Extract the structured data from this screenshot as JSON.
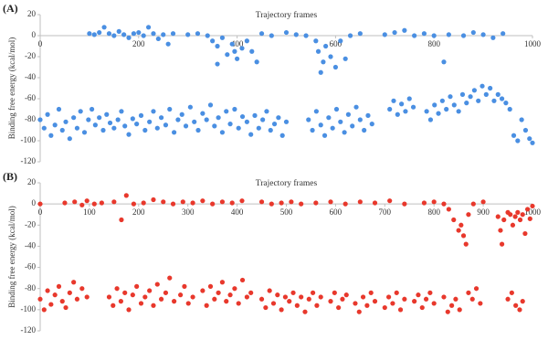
{
  "chart_data": [
    {
      "type": "scatter",
      "panel_label": "(A)",
      "title": "Trajectory frames",
      "ylabel": "Binding free energy (kcal/mol)",
      "color": "#4a8fe2",
      "xlim": [
        0,
        1000
      ],
      "ylim": [
        -120,
        20
      ],
      "xticks": [
        0,
        200,
        400,
        600,
        800,
        1000
      ],
      "yticks": [
        20,
        0,
        -20,
        -40,
        -60,
        -80,
        -100,
        -120
      ],
      "x": [
        100,
        110,
        120,
        130,
        140,
        150,
        160,
        170,
        180,
        190,
        200,
        210,
        220,
        230,
        240,
        250,
        260,
        270,
        300,
        320,
        340,
        350,
        360,
        370,
        380,
        390,
        400,
        410,
        420,
        430,
        440,
        360,
        395,
        450,
        470,
        500,
        520,
        540,
        560,
        565,
        570,
        575,
        580,
        590,
        600,
        610,
        620,
        630,
        650,
        700,
        720,
        740,
        760,
        780,
        800,
        820,
        830,
        860,
        880,
        900,
        920,
        940,
        0,
        8,
        15,
        22,
        30,
        38,
        45,
        52,
        60,
        68,
        75,
        82,
        90,
        98,
        105,
        112,
        120,
        128,
        135,
        142,
        150,
        158,
        165,
        172,
        180,
        188,
        196,
        205,
        213,
        222,
        230,
        238,
        246,
        255,
        263,
        272,
        280,
        288,
        296,
        305,
        313,
        321,
        330,
        338,
        346,
        354,
        362,
        370,
        378,
        386,
        395,
        403,
        411,
        420,
        428,
        436,
        444,
        452,
        460,
        468,
        476,
        484,
        492,
        500,
        545,
        553,
        561,
        570,
        578,
        586,
        594,
        602,
        610,
        618,
        626,
        634,
        642,
        650,
        658,
        666,
        674,
        710,
        718,
        726,
        734,
        742,
        750,
        758,
        785,
        793,
        801,
        809,
        817,
        825,
        833,
        841,
        850,
        858,
        866,
        874,
        882,
        890,
        898,
        906,
        914,
        922,
        930,
        938,
        946,
        954,
        962,
        970,
        978,
        986,
        994,
        1000
      ],
      "values": [
        2,
        1,
        3,
        8,
        2,
        0,
        4,
        1,
        -2,
        2,
        3,
        0,
        8,
        2,
        -3,
        1,
        -8,
        2,
        1,
        2,
        0,
        -5,
        -10,
        -2,
        -18,
        -8,
        -22,
        -12,
        -5,
        -15,
        -25,
        -27,
        -15,
        2,
        0,
        3,
        1,
        0,
        -5,
        -15,
        -35,
        -25,
        -10,
        -20,
        -30,
        -5,
        -22,
        0,
        2,
        1,
        3,
        5,
        0,
        2,
        0,
        -25,
        1,
        0,
        3,
        1,
        -2,
        2,
        -80,
        -88,
        -75,
        -95,
        -85,
        -70,
        -90,
        -82,
        -98,
        -78,
        -88,
        -72,
        -92,
        -80,
        -70,
        -85,
        -78,
        -90,
        -75,
        -83,
        -88,
        -80,
        -72,
        -86,
        -94,
        -79,
        -84,
        -76,
        -90,
        -82,
        -72,
        -88,
        -78,
        -85,
        -70,
        -92,
        -80,
        -75,
        -86,
        -68,
        -82,
        -90,
        -74,
        -80,
        -66,
        -86,
        -78,
        -92,
        -72,
        -84,
        -70,
        -88,
        -77,
        -82,
        -94,
        -76,
        -88,
        -80,
        -72,
        -90,
        -84,
        -78,
        -95,
        -82,
        -80,
        -90,
        -72,
        -85,
        -95,
        -78,
        -88,
        -70,
        -82,
        -92,
        -75,
        -86,
        -68,
        -80,
        -90,
        -76,
        -84,
        -70,
        -62,
        -75,
        -65,
        -72,
        -60,
        -68,
        -72,
        -80,
        -66,
        -74,
        -62,
        -70,
        -58,
        -66,
        -72,
        -56,
        -64,
        -58,
        -52,
        -62,
        -48,
        -56,
        -50,
        -62,
        -56,
        -60,
        -64,
        -70,
        -95,
        -100,
        -80,
        -90,
        -98,
        -102
      ]
    },
    {
      "type": "scatter",
      "panel_label": "(B)",
      "title": "Trajectory frames",
      "ylabel": "Binding free energy (kcal/mol)",
      "color": "#e8382c",
      "xlim": [
        0,
        1000
      ],
      "ylim": [
        -120,
        20
      ],
      "xticks": [
        0,
        100,
        200,
        300,
        400,
        500,
        600,
        700,
        800,
        900,
        1000
      ],
      "yticks": [
        20,
        0,
        -20,
        -40,
        -60,
        -80,
        -100,
        -120
      ],
      "x": [
        0,
        50,
        70,
        85,
        95,
        110,
        125,
        150,
        165,
        175,
        190,
        210,
        230,
        250,
        270,
        290,
        310,
        330,
        350,
        370,
        390,
        410,
        450,
        470,
        490,
        510,
        530,
        560,
        590,
        620,
        650,
        680,
        710,
        740,
        780,
        800,
        820,
        830,
        840,
        850,
        855,
        860,
        865,
        870,
        880,
        900,
        930,
        935,
        938,
        942,
        950,
        955,
        960,
        965,
        970,
        975,
        980,
        985,
        990,
        995,
        1000,
        0,
        8,
        15,
        22,
        30,
        38,
        45,
        52,
        60,
        68,
        75,
        85,
        95,
        140,
        148,
        156,
        164,
        172,
        180,
        188,
        196,
        205,
        213,
        222,
        230,
        238,
        246,
        255,
        263,
        272,
        285,
        293,
        301,
        310,
        330,
        338,
        346,
        354,
        362,
        370,
        378,
        386,
        395,
        403,
        411,
        420,
        428,
        450,
        458,
        466,
        474,
        482,
        490,
        498,
        506,
        514,
        522,
        530,
        538,
        546,
        554,
        562,
        570,
        590,
        598,
        606,
        614,
        622,
        640,
        648,
        656,
        664,
        672,
        680,
        700,
        708,
        716,
        724,
        732,
        740,
        760,
        768,
        776,
        784,
        792,
        800,
        820,
        828,
        836,
        844,
        852,
        870,
        878,
        886,
        894,
        950,
        958,
        966,
        974,
        980
      ],
      "values": [
        0,
        1,
        2,
        -1,
        3,
        0,
        1,
        2,
        -15,
        8,
        0,
        1,
        4,
        2,
        0,
        2,
        1,
        3,
        0,
        2,
        1,
        3,
        2,
        0,
        1,
        2,
        0,
        1,
        2,
        0,
        2,
        1,
        3,
        0,
        1,
        2,
        0,
        -5,
        -15,
        -25,
        -20,
        -30,
        -38,
        -10,
        0,
        2,
        -12,
        -25,
        -38,
        -15,
        -8,
        -10,
        -20,
        -12,
        -8,
        -15,
        -10,
        -28,
        -5,
        -14,
        -2,
        -90,
        -100,
        -82,
        -95,
        -86,
        -78,
        -92,
        -98,
        -84,
        -74,
        -90,
        -80,
        -88,
        -88,
        -96,
        -80,
        -92,
        -84,
        -100,
        -86,
        -78,
        -94,
        -88,
        -82,
        -96,
        -76,
        -90,
        -84,
        -70,
        -92,
        -86,
        -78,
        -94,
        -88,
        -82,
        -96,
        -78,
        -90,
        -84,
        -74,
        -92,
        -86,
        -80,
        -94,
        -72,
        -88,
        -84,
        -90,
        -98,
        -82,
        -94,
        -86,
        -100,
        -88,
        -92,
        -84,
        -96,
        -88,
        -102,
        -90,
        -84,
        -96,
        -88,
        -92,
        -84,
        -98,
        -90,
        -86,
        -94,
        -102,
        -88,
        -96,
        -84,
        -92,
        -98,
        -88,
        -94,
        -84,
        -100,
        -90,
        -92,
        -86,
        -98,
        -90,
        -84,
        -94,
        -88,
        -102,
        -96,
        -90,
        -100,
        -84,
        -90,
        -80,
        -94,
        -90,
        -84,
        -96,
        -100,
        -92
      ]
    }
  ]
}
